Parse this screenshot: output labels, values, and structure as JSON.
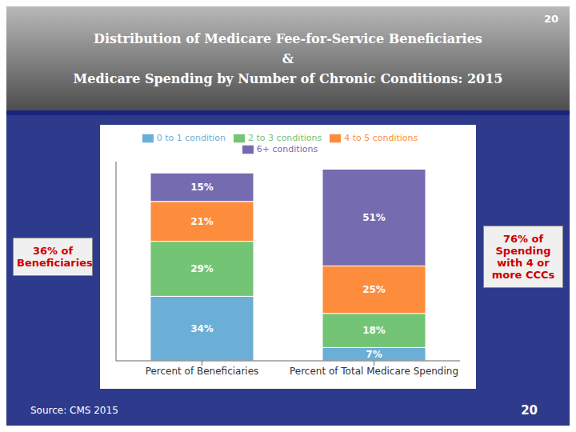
{
  "chart_data": {
    "type": "bar",
    "title": "Distribution of Medicare Fee-for-Service Beneficiaries\n&\nMedicare Spending by Number of Chronic Conditions: 2015",
    "categories": [
      "Percent of Beneficiaries",
      "Percent of Total Medicare Spending"
    ],
    "series": [
      {
        "name": "0 to 1 condition",
        "color": "#6baed6",
        "values": [
          34,
          7
        ],
        "value_labels": [
          "34%",
          "7%"
        ]
      },
      {
        "name": "2 to 3 conditions",
        "color": "#74c476",
        "values": [
          29,
          18
        ],
        "value_labels": [
          "29%",
          "18%"
        ]
      },
      {
        "name": "4 to 5 conditions",
        "color": "#fd8d3c",
        "values": [
          21,
          25
        ],
        "value_labels": [
          "21%",
          "25%"
        ]
      },
      {
        "name": "6+ conditions",
        "color": "#756bb1",
        "values": [
          15,
          51
        ],
        "value_labels": [
          "15%",
          "51%"
        ]
      }
    ],
    "stacked": true,
    "data_labels": true,
    "ylim": [
      0,
      105
    ],
    "yticks": [],
    "tick_labels": "x",
    "grid": false,
    "legend": "top",
    "annotations": [
      {
        "text": "36% of\nBeneficiaries",
        "color": "#cc0000"
      },
      {
        "text": "76% of\nSpending\nwith 4 or\nmore CCCs",
        "color": "#cc0000"
      },
      {
        "text": "Source: CMS 2015"
      },
      {
        "text": "20"
      }
    ]
  }
}
